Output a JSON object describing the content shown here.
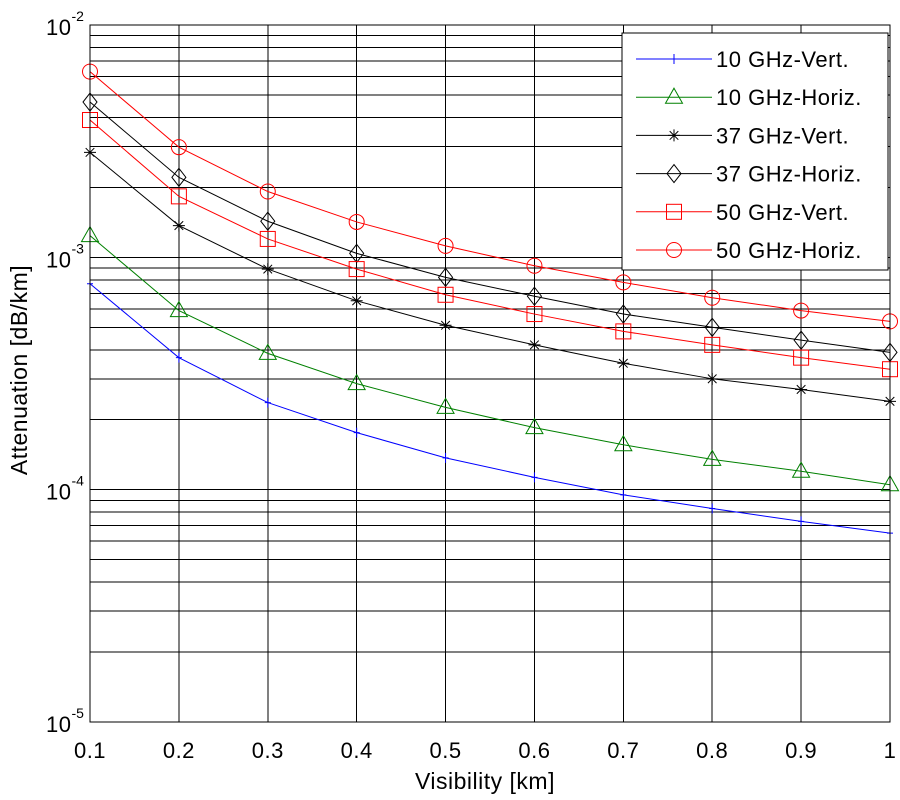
{
  "chart_data": {
    "type": "line",
    "xlabel": "Visibility [km]",
    "ylabel": "Attenuation [dB/km]",
    "xlim": [
      0.1,
      1
    ],
    "ylim": [
      1e-05,
      0.01
    ],
    "yscale": "log",
    "grid": true,
    "legend_position": "top-right",
    "x": [
      0.1,
      0.2,
      0.3,
      0.4,
      0.5,
      0.6,
      0.7,
      0.8,
      0.9,
      1.0
    ],
    "x_ticks": [
      "0.1",
      "0.2",
      "0.3",
      "0.4",
      "0.5",
      "0.6",
      "0.7",
      "0.8",
      "0.9",
      "1"
    ],
    "y_ticks": [
      {
        "value": 0.01,
        "base": "10",
        "exp": "-2"
      },
      {
        "value": 0.001,
        "base": "10",
        "exp": "-3"
      },
      {
        "value": 0.0001,
        "base": "10",
        "exp": "-4"
      },
      {
        "value": 1e-05,
        "base": "10",
        "exp": "-5"
      }
    ],
    "series": [
      {
        "name": "10 GHz-Vert.",
        "color": "#0000ff",
        "marker": "plus",
        "values": [
          0.00077,
          0.00037,
          0.000237,
          0.000176,
          0.000137,
          0.000113,
          9.5e-05,
          8.3e-05,
          7.3e-05,
          6.5e-05
        ]
      },
      {
        "name": "10 GHz-Horiz.",
        "color": "#008000",
        "marker": "triangle",
        "values": [
          0.00124,
          0.00059,
          0.000386,
          0.000286,
          0.000226,
          0.000185,
          0.000156,
          0.000135,
          0.00012,
          0.000105
        ]
      },
      {
        "name": "37 GHz-Vert.",
        "color": "#000000",
        "marker": "asterisk",
        "values": [
          0.00283,
          0.00137,
          0.00089,
          0.00065,
          0.00051,
          0.00042,
          0.00035,
          0.0003,
          0.00027,
          0.00024
        ]
      },
      {
        "name": "37 GHz-Horiz.",
        "color": "#000000",
        "marker": "diamond",
        "values": [
          0.00466,
          0.00221,
          0.00143,
          0.00104,
          0.00082,
          0.00068,
          0.00057,
          0.0005,
          0.00044,
          0.00039
        ]
      },
      {
        "name": "50 GHz-Vert.",
        "color": "#ff0000",
        "marker": "square",
        "values": [
          0.0039,
          0.00183,
          0.0012,
          0.00089,
          0.00069,
          0.00057,
          0.00048,
          0.00042,
          0.00037,
          0.00033
        ]
      },
      {
        "name": "50 GHz-Horiz.",
        "color": "#ff0000",
        "marker": "circle",
        "values": [
          0.0063,
          0.00298,
          0.00192,
          0.00142,
          0.00112,
          0.00092,
          0.00078,
          0.00067,
          0.00059,
          0.00053
        ]
      }
    ]
  }
}
